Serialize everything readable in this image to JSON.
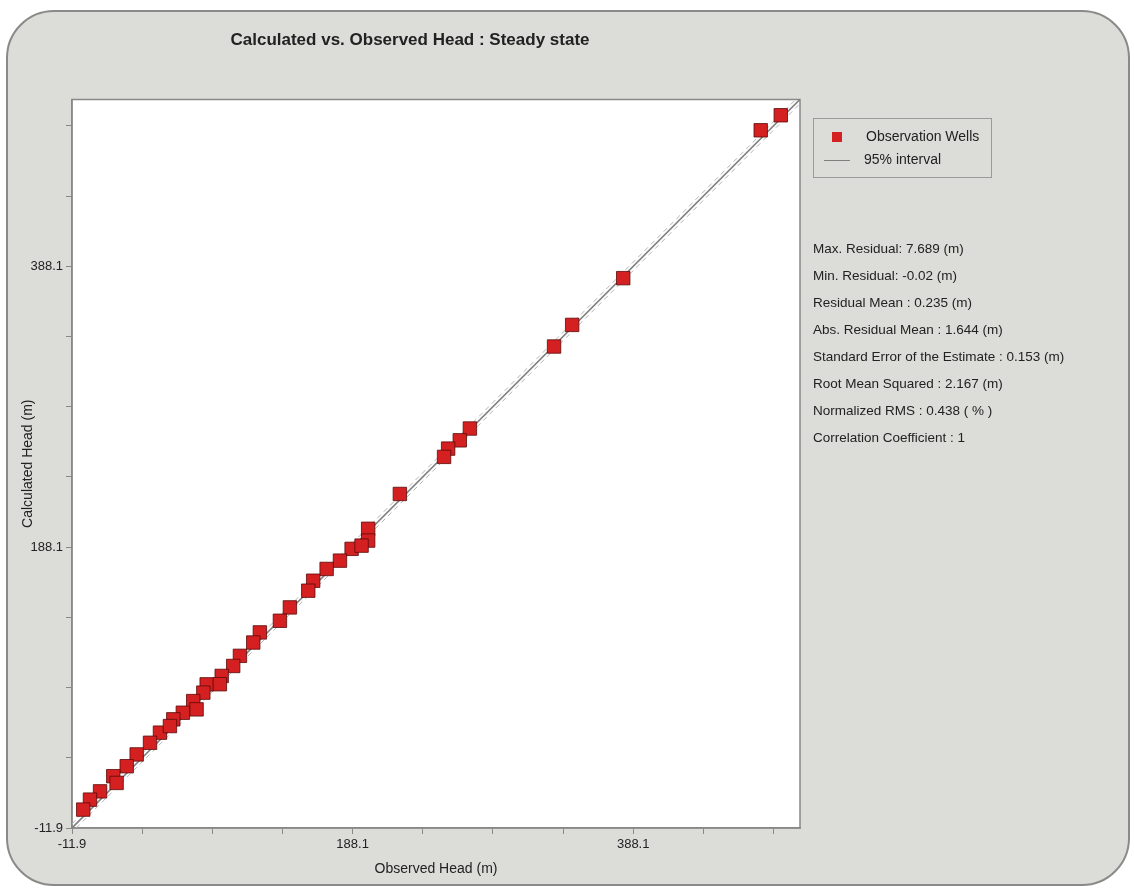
{
  "chart_data": {
    "type": "scatter",
    "title": "Calculated vs. Observed Head : Steady state",
    "xlabel": "Observed Head (m)",
    "ylabel": "Calculated Head (m)",
    "xlim": [
      -11.9,
      507
    ],
    "ylim": [
      -11.9,
      507
    ],
    "xticks": [
      -11.9,
      {
        "value": 38.1,
        "label": null
      },
      {
        "value": 88.1,
        "label": null
      },
      {
        "value": 138.1,
        "label": null
      },
      188.1,
      {
        "value": 238.1,
        "label": null
      },
      {
        "value": 288.1,
        "label": null
      },
      {
        "value": 338.1,
        "label": null
      },
      388.1,
      {
        "value": 438.1,
        "label": null
      },
      {
        "value": 488.1,
        "label": null
      }
    ],
    "yticks": [
      -11.9,
      {
        "value": 38.1,
        "label": null
      },
      {
        "value": 88.1,
        "label": null
      },
      {
        "value": 138.1,
        "label": null
      },
      188.1,
      {
        "value": 238.1,
        "label": null
      },
      {
        "value": 288.1,
        "label": null
      },
      {
        "value": 338.1,
        "label": null
      },
      388.1,
      {
        "value": 438.1,
        "label": null
      },
      {
        "value": 488.1,
        "label": null
      }
    ],
    "grid": false,
    "legend": "right",
    "marker": "square",
    "series": [
      {
        "name": "Observation Wells",
        "color": "#d42020",
        "x": [
          493.3,
          479,
          381,
          344.6,
          331.7,
          271.7,
          264.5,
          256.2,
          253.3,
          221.8,
          199.2,
          199.2,
          187.4,
          194.5,
          179.1,
          169.6,
          160,
          156.5,
          143.4,
          136.3,
          122,
          117.3,
          107.8,
          103,
          94.8,
          84.1,
          81.7,
          74.5,
          67.1,
          60.3,
          50.8,
          43.7,
          34.2,
          27.1,
          17.5,
          8.1,
          0.9,
          -3.9,
          57.9,
          19.9,
          76.9,
          93.5
        ],
        "values": [
          495.7,
          485,
          379.7,
          346.4,
          331,
          272.6,
          264.2,
          258.3,
          252.4,
          226,
          201.2,
          192.8,
          186.9,
          189.2,
          178.5,
          172.6,
          164.2,
          157.1,
          145.2,
          135.7,
          127.4,
          120.2,
          110.7,
          103.5,
          96.4,
          90.4,
          84.5,
          78.5,
          70.2,
          65.5,
          56,
          48.8,
          40.5,
          32.1,
          25,
          14.2,
          8.3,
          1.2,
          60.7,
          20.2,
          72.6,
          90.5
        ]
      },
      {
        "name": "95% interval",
        "type": "line",
        "color": "#808080",
        "line_style": "solid",
        "marker": "none",
        "x": [
          -11.9,
          507
        ],
        "values": [
          -11.9,
          507
        ]
      },
      {
        "type": "line",
        "color": "#b4b4b4",
        "line_style": "dashed",
        "marker": "none",
        "x": [
          -11.9,
          504
        ],
        "values": [
          -8.9,
          507
        ]
      },
      {
        "type": "line",
        "color": "#b4b4b4",
        "line_style": "dashed",
        "marker": "none",
        "x": [
          -8.9,
          507
        ],
        "values": [
          -11.9,
          504
        ]
      }
    ],
    "annotations": [
      "Max. Residual: 7.689 (m)",
      "Min. Residual: -0.02 (m)",
      "Residual Mean : 0.235 (m)",
      "Abs. Residual Mean : 1.644 (m)",
      "Standard Error of the Estimate : 0.153 (m)",
      "Root Mean Squared : 2.167 (m)",
      "Normalized RMS : 0.438 ( % )",
      "Correlation Coefficient : 1"
    ]
  }
}
